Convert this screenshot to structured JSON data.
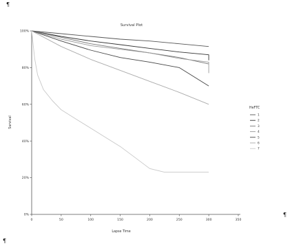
{
  "page": {
    "marks": {
      "top_left": "¶",
      "right": "¶",
      "bottom_left": "¶"
    }
  },
  "chart_data": {
    "type": "line",
    "title": "Survival Plot",
    "xlabel": "Lapse Time",
    "ylabel": "Survival",
    "xlim": [
      0,
      350
    ],
    "ylim": [
      0,
      100
    ],
    "x_ticks": [
      "0",
      "50",
      "100",
      "150",
      "200",
      "250",
      "300",
      "350"
    ],
    "y_ticks": [
      "0%",
      "20%",
      "40%",
      "60%",
      "80%",
      "100%"
    ],
    "grid": false,
    "legend": {
      "title": "HeFTC",
      "placement": "right",
      "entries": [
        "1",
        "2",
        "3",
        "4",
        "5",
        "6",
        "7"
      ]
    },
    "series": [
      {
        "name": "1",
        "color": "#555555",
        "x": [
          0,
          50,
          100,
          150,
          200,
          250,
          300
        ],
        "y": [
          100,
          98.5,
          97,
          95.5,
          94.5,
          93,
          91.5
        ]
      },
      {
        "name": "2",
        "color": "#333333",
        "x": [
          0,
          50,
          100,
          150,
          200,
          250,
          300,
          300
        ],
        "y": [
          100,
          97,
          94.5,
          92.5,
          90.5,
          88.5,
          87,
          84
        ]
      },
      {
        "name": "3",
        "color": "#777777",
        "x": [
          0,
          50,
          100,
          150,
          200,
          250,
          300
        ],
        "y": [
          100,
          96.5,
          93,
          90.5,
          88,
          85.5,
          82
        ]
      },
      {
        "name": "4",
        "color": "#999999",
        "x": [
          0,
          50,
          100,
          150,
          200,
          250,
          300,
          300
        ],
        "y": [
          100,
          95.5,
          92,
          90,
          88,
          85,
          83,
          77
        ]
      },
      {
        "name": "5",
        "color": "#444444",
        "x": [
          0,
          50,
          100,
          150,
          200,
          250,
          300
        ],
        "y": [
          100,
          94.5,
          89.5,
          85.5,
          83,
          80,
          70
        ]
      },
      {
        "name": "6",
        "color": "#aaaaaa",
        "x": [
          0,
          50,
          100,
          150,
          200,
          250,
          300
        ],
        "y": [
          100,
          91.5,
          84.5,
          78.5,
          72.5,
          66.5,
          60
        ]
      },
      {
        "name": "7",
        "color": "#c8c8c8",
        "x": [
          0,
          5,
          10,
          20,
          35,
          50,
          75,
          100,
          125,
          150,
          175,
          200,
          225,
          250,
          300
        ],
        "y": [
          100,
          85,
          76,
          68,
          62,
          57,
          52,
          47,
          42,
          37,
          31,
          25,
          23,
          23,
          23
        ]
      }
    ]
  }
}
